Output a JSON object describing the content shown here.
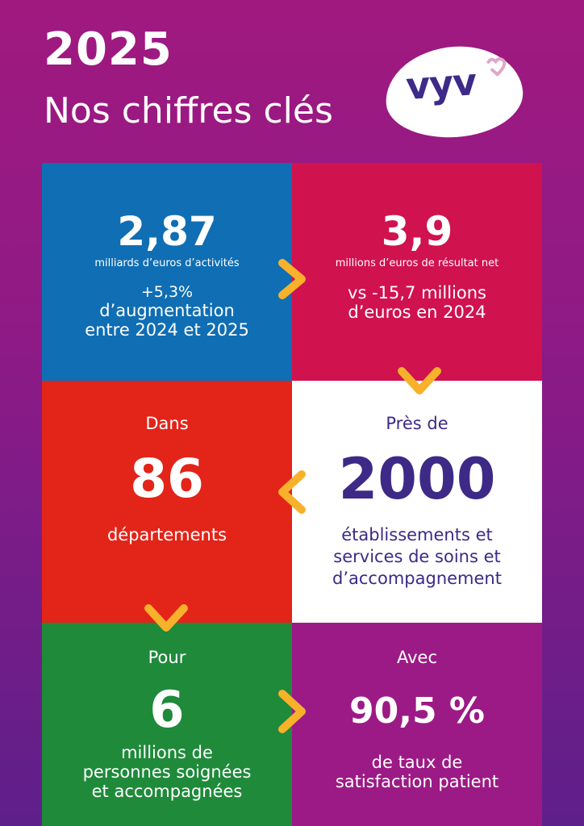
{
  "header": {
    "year": "2025",
    "subtitle": "Nos chiffres clés",
    "logo_text": "vyv"
  },
  "cells": {
    "activity": {
      "value": "2,87",
      "unit": "milliards d’euros d’activités",
      "line1": "+5,3%",
      "line2": "d’augmentation",
      "line3": "entre 2024 et 2025"
    },
    "result": {
      "value": "3,9",
      "unit": "millions d’euros de résultat net",
      "line1": "vs -15,7 millions",
      "line2": "d’euros en 2024"
    },
    "departments": {
      "prefix": "Dans",
      "value": "86",
      "label": "départements"
    },
    "establishments": {
      "prefix": "Près de",
      "value": "2000",
      "line1": "établissements et",
      "line2": "services de soins et",
      "line3": "d’accompagnement"
    },
    "people": {
      "prefix": "Pour",
      "value": "6",
      "line1": "millions de",
      "line2": "personnes soignées",
      "line3": "et accompagnées"
    },
    "satisfaction": {
      "prefix": "Avec",
      "value": "90,5 %",
      "line1": "de taux de",
      "line2": "satisfaction patient"
    }
  },
  "colors": {
    "background_top": "#a0197f",
    "background_bottom": "#5e1f8a",
    "blue": "#0f6eb4",
    "pink": "#d0124f",
    "red": "#e32419",
    "white": "#ffffff",
    "green": "#1e8a3a",
    "magenta": "#9c1a86",
    "arrow": "#f7b12b",
    "navy_text": "#3d2a87"
  }
}
